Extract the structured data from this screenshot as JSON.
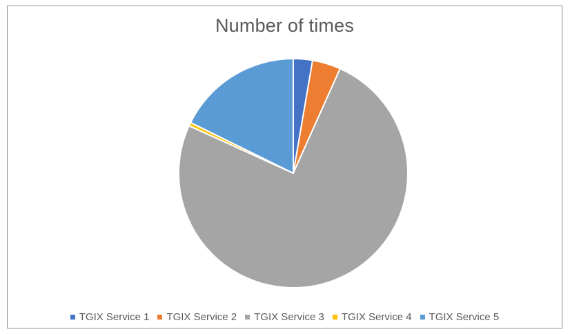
{
  "chart_data": {
    "type": "pie",
    "title": "Number of times",
    "legend_position": "bottom",
    "categories": [
      "TGIX Service 1",
      "TGIX Service 2",
      "TGIX Service 3",
      "TGIX Service 4",
      "TGIX Service 5"
    ],
    "values": [
      2.7,
      4.0,
      75.1,
      0.5,
      17.7
    ],
    "colors": [
      "#4472c4",
      "#ed7d31",
      "#a5a5a5",
      "#ffc000",
      "#5b9bd5"
    ]
  }
}
